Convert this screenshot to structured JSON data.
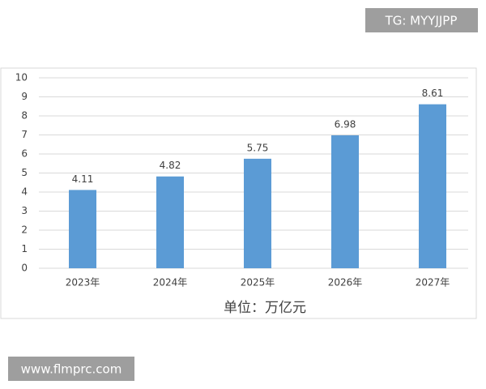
{
  "chart_data": {
    "type": "bar",
    "xlabel": "单位：万亿元",
    "categories": [
      "2023年",
      "2024年",
      "2025年",
      "2026年",
      "2027年"
    ],
    "values": [
      4.11,
      4.82,
      5.75,
      6.98,
      8.61
    ],
    "color": "#5b9bd5",
    "ylim": [
      0,
      10
    ],
    "yticks": [
      0,
      1,
      2,
      3,
      4,
      5,
      6,
      7,
      8,
      9,
      10
    ],
    "grid": true,
    "data_labels": true
  },
  "watermarks": {
    "top": "TG: MYYJJPP",
    "bottom": "www.flmprc.com"
  }
}
